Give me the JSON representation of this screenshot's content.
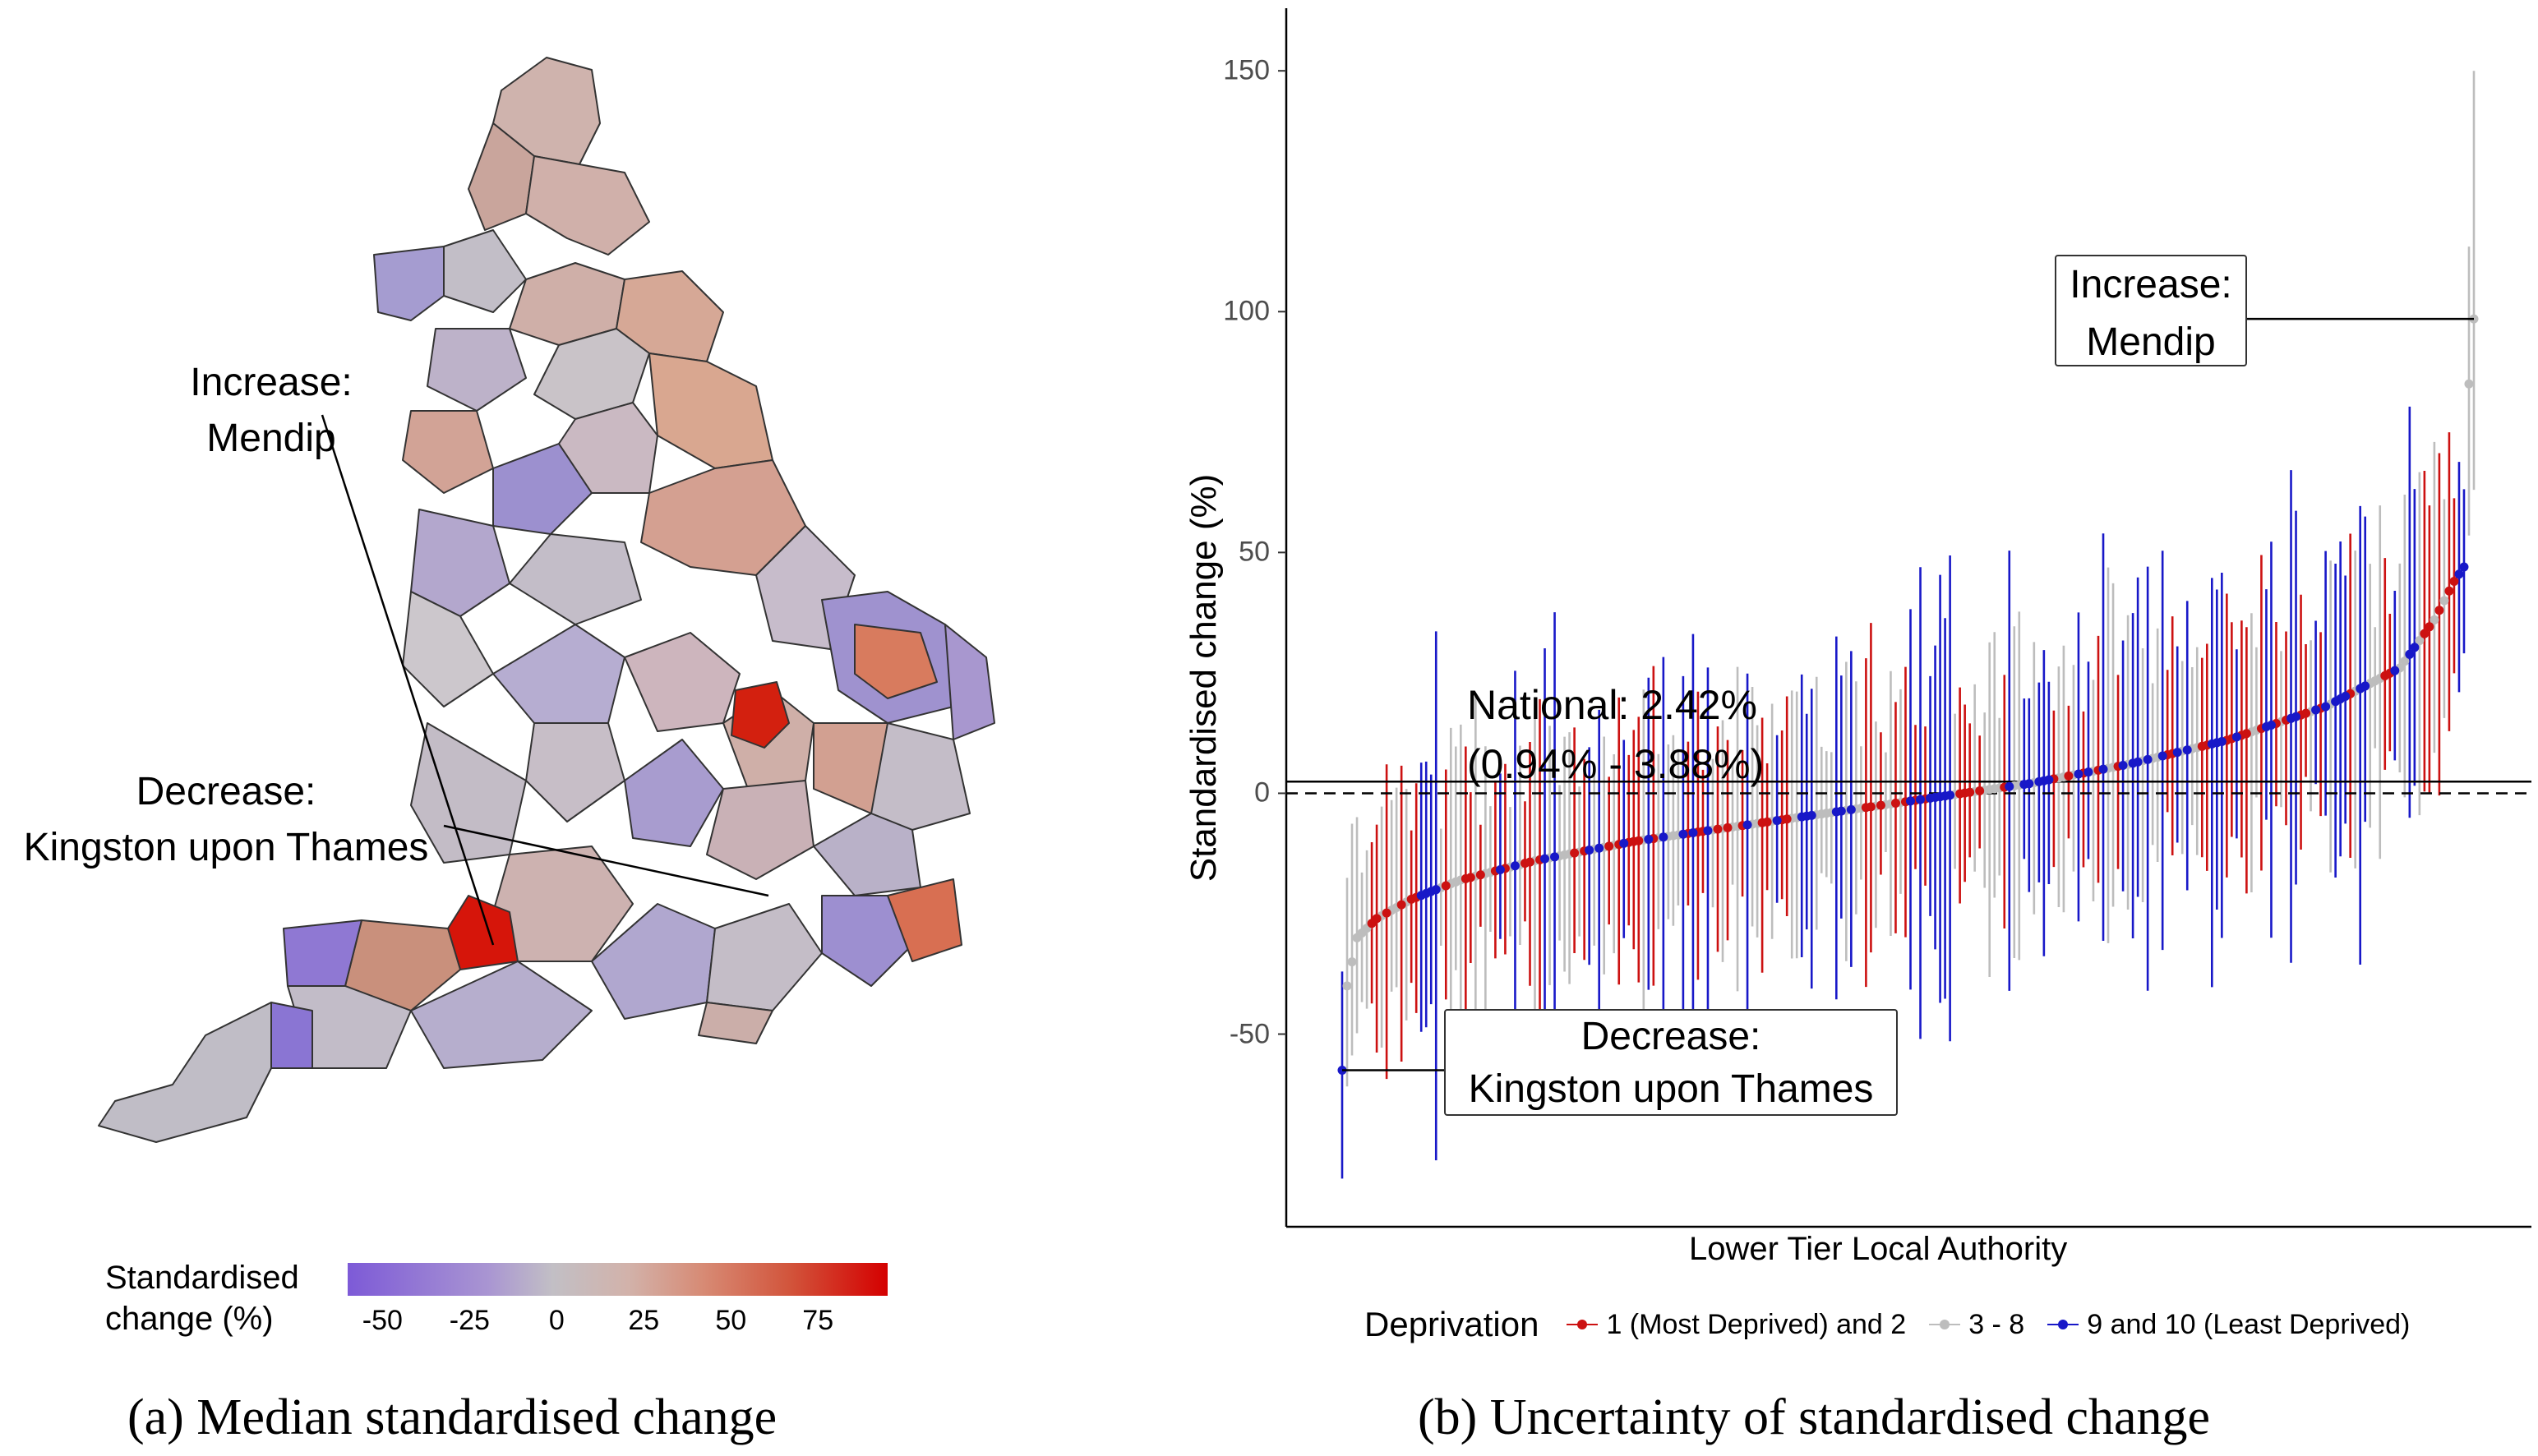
{
  "figure": {
    "panel_a": {
      "caption": "(a) Median standardised change",
      "annotation_increase": [
        "Increase:",
        "Mendip"
      ],
      "annotation_decrease": [
        "Decrease:",
        "Kingston upon Thames"
      ],
      "legend": {
        "title_lines": [
          "Standardised",
          "change (%)"
        ],
        "ticks": [
          "-50",
          "-25",
          "0",
          "25",
          "50",
          "75"
        ],
        "tick_values": [
          -50,
          -25,
          0,
          25,
          50,
          75
        ],
        "range": [
          -60,
          95
        ],
        "low_color": "#7d5ad7",
        "mid_color": "#c2bfc5",
        "high_color": "#d40000"
      }
    },
    "panel_b": {
      "caption": "(b) Uncertainty of standardised change",
      "national_lines": [
        "National: 2.42%",
        "(0.94% - 3.88%)"
      ],
      "annotation_increase": [
        "Increase:",
        "Mendip"
      ],
      "annotation_decrease": [
        "Decrease:",
        "Kingston upon Thames"
      ]
    }
  },
  "chart_data": {
    "type": "scatter",
    "title": "",
    "xlabel": "Lower Tier Local Authority",
    "ylabel": "Standardised change (%)",
    "ylim": [
      -90,
      163
    ],
    "yticks": [
      -50,
      0,
      50,
      100,
      150
    ],
    "grid": false,
    "legend_title": "Deprivation",
    "legend_position": "bottom",
    "reference_lines": [
      {
        "label": "National",
        "y": 2.42,
        "style": "solid"
      },
      {
        "label": "zero",
        "y": 0,
        "style": "dashed"
      }
    ],
    "series": [
      {
        "name": "1 (Most Deprived) and 2",
        "color": "#cc1111"
      },
      {
        "name": "3 - 8",
        "color": "#bdbdbd"
      },
      {
        "name": "9 and 10 (Least Deprived)",
        "color": "#1818c8"
      }
    ],
    "n_authorities": 230,
    "points_shape": "sorted by median; median rises from about -57 to about 98 with long flat middle near 0 to 20",
    "highlight_points": [
      {
        "name": "Kingston upon Thames",
        "rank": 1,
        "median": -57.5,
        "lower": -80,
        "upper": -37,
        "group": 2
      },
      {
        "name": "Mendip",
        "rank": 230,
        "median": 98.5,
        "lower": 63,
        "upper": 150,
        "group": 1
      }
    ],
    "anchor_medians": [
      [
        1,
        -57.5
      ],
      [
        2,
        -40
      ],
      [
        4,
        -30
      ],
      [
        8,
        -26
      ],
      [
        15,
        -22
      ],
      [
        25,
        -18
      ],
      [
        40,
        -14
      ],
      [
        60,
        -10
      ],
      [
        80,
        -7
      ],
      [
        100,
        -4
      ],
      [
        120,
        -1
      ],
      [
        140,
        2
      ],
      [
        160,
        6
      ],
      [
        180,
        11
      ],
      [
        200,
        18
      ],
      [
        215,
        26
      ],
      [
        222,
        36
      ],
      [
        226,
        44
      ],
      [
        228,
        47
      ],
      [
        229,
        85
      ],
      [
        230,
        98.5
      ]
    ]
  }
}
